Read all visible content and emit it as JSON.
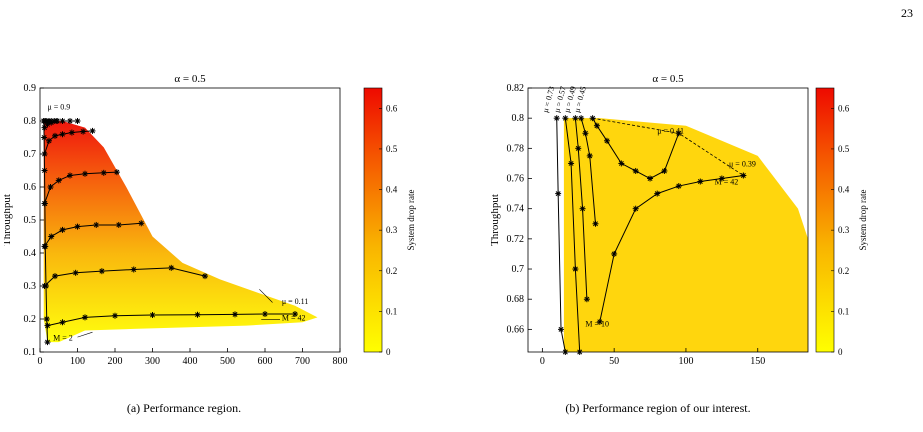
{
  "page_number": "23",
  "figures": [
    {
      "caption": "(a) Performance region.",
      "title": "α = 0.5",
      "xlabel": "Delay",
      "ylabel": "Throughput",
      "colorbar_label": "System drop rate",
      "annotations": {
        "mu_top": "μ = 0.9",
        "mu_right": "μ = 0.11",
        "m_right": "M = 42",
        "m_left": "M = 2"
      }
    },
    {
      "caption": "(b) Performance region of our interest.",
      "title": "α = 0.5",
      "xlabel": "Delay",
      "ylabel": "Throughput",
      "colorbar_label": "System drop rate",
      "annotations": {
        "mu_labels": [
          "μ = 0.73",
          "μ = 0.57",
          "μ = 0.49",
          "μ = 0.45"
        ],
        "mu_right": "μ = 0.41",
        "mu_right2": "μ = 0.39",
        "m_right": "M = 42",
        "m_bottom": "M = 10"
      }
    }
  ],
  "chart_data": [
    {
      "type": "scatter",
      "title": "α = 0.5",
      "xlabel": "Delay",
      "ylabel": "Throughput",
      "xlim": [
        0,
        800
      ],
      "ylim": [
        0.1,
        0.9
      ],
      "xticks": [
        0,
        100,
        200,
        300,
        400,
        500,
        600,
        700,
        800
      ],
      "yticks": [
        0.1,
        0.2,
        0.3,
        0.4,
        0.5,
        0.6,
        0.7,
        0.8,
        0.9
      ],
      "colorbar": {
        "label": "System drop rate",
        "range": [
          0,
          0.65
        ],
        "ticks": [
          0,
          0.1,
          0.2,
          0.3,
          0.4,
          0.5,
          0.6
        ]
      },
      "series": [
        {
          "x": [
            12,
            40,
            95,
            165,
            250,
            350,
            440
          ],
          "y": [
            0.3,
            0.33,
            0.34,
            0.345,
            0.35,
            0.355,
            0.33
          ]
        },
        {
          "x": [
            20,
            60,
            120,
            200,
            300,
            420,
            520,
            600,
            680
          ],
          "y": [
            0.18,
            0.19,
            0.205,
            0.21,
            0.212,
            0.213,
            0.214,
            0.215,
            0.215
          ]
        },
        {
          "x": [
            12,
            30,
            60,
            100,
            150,
            210,
            270
          ],
          "y": [
            0.42,
            0.45,
            0.47,
            0.48,
            0.485,
            0.485,
            0.49
          ]
        },
        {
          "x": [
            12,
            28,
            50,
            80,
            120,
            170,
            205
          ],
          "y": [
            0.55,
            0.6,
            0.62,
            0.635,
            0.64,
            0.643,
            0.645
          ]
        },
        {
          "x": [
            12,
            24,
            40,
            60,
            85,
            115,
            140
          ],
          "y": [
            0.7,
            0.74,
            0.755,
            0.76,
            0.765,
            0.768,
            0.77
          ]
        },
        {
          "x": [
            12,
            20,
            30,
            45,
            60,
            80,
            100
          ],
          "y": [
            0.78,
            0.79,
            0.795,
            0.8,
            0.8,
            0.8,
            0.8
          ]
        },
        {
          "x": [
            10,
            14,
            18,
            24,
            30,
            38,
            46
          ],
          "y": [
            0.8,
            0.8,
            0.8,
            0.8,
            0.8,
            0.8,
            0.8
          ]
        },
        {
          "x": [
            10,
            11,
            12,
            13,
            14,
            16,
            18,
            20
          ],
          "y": [
            0.8,
            0.75,
            0.65,
            0.55,
            0.42,
            0.3,
            0.2,
            0.13
          ]
        }
      ]
    },
    {
      "type": "scatter",
      "title": "α = 0.5",
      "xlabel": "Delay",
      "ylabel": "Throughput",
      "xlim": [
        -10,
        185
      ],
      "ylim": [
        0.645,
        0.82
      ],
      "xticks": [
        0,
        50,
        100,
        150
      ],
      "yticks": [
        0.66,
        0.68,
        0.7,
        0.72,
        0.74,
        0.76,
        0.78,
        0.8,
        0.82
      ],
      "colorbar": {
        "label": "System drop rate",
        "range": [
          0,
          0.65
        ],
        "ticks": [
          0,
          0.1,
          0.2,
          0.3,
          0.4,
          0.5,
          0.6
        ]
      },
      "series": [
        {
          "x": [
            10,
            11,
            13,
            16
          ],
          "y": [
            0.8,
            0.75,
            0.66,
            0.645
          ]
        },
        {
          "x": [
            16,
            20,
            23,
            26
          ],
          "y": [
            0.8,
            0.77,
            0.7,
            0.645
          ]
        },
        {
          "x": [
            23,
            25,
            28,
            31
          ],
          "y": [
            0.8,
            0.78,
            0.74,
            0.68
          ]
        },
        {
          "x": [
            27,
            30,
            33,
            37
          ],
          "y": [
            0.8,
            0.79,
            0.775,
            0.73
          ]
        },
        {
          "x": [
            35,
            38,
            45,
            55,
            65,
            75,
            85,
            95
          ],
          "y": [
            0.8,
            0.795,
            0.785,
            0.77,
            0.765,
            0.76,
            0.765,
            0.79
          ]
        },
        {
          "x": [
            40,
            50,
            65,
            80,
            95,
            110,
            125,
            140
          ],
          "y": [
            0.665,
            0.71,
            0.74,
            0.75,
            0.755,
            0.758,
            0.76,
            0.762
          ]
        }
      ]
    }
  ]
}
